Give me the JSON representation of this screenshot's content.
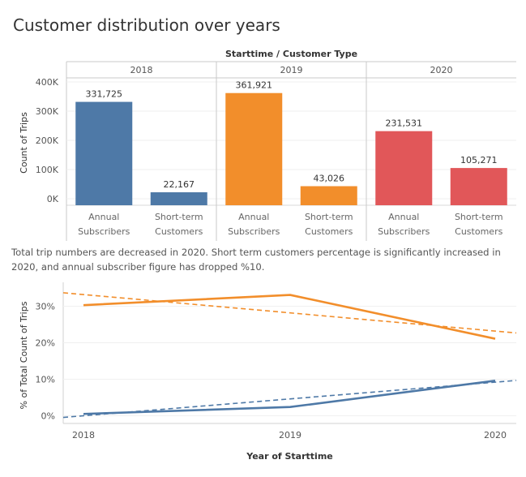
{
  "title": "Customer distribution over years",
  "caption": "Total trip numbers are decreased in 2020. Short term customers percentage is significantly increased in 2020, and annual subscriber figure has dropped %10.",
  "chart_data": [
    {
      "type": "bar",
      "column_header": "Starttime  /  Customer Type",
      "ylabel": "Count of Trips",
      "ylim": [
        0,
        400000
      ],
      "yticks": [
        {
          "value": 0,
          "label": "0K"
        },
        {
          "value": 100000,
          "label": "100K"
        },
        {
          "value": 200000,
          "label": "200K"
        },
        {
          "value": 300000,
          "label": "300K"
        },
        {
          "value": 400000,
          "label": "400K"
        }
      ],
      "groups": [
        "2018",
        "2019",
        "2020"
      ],
      "categories": [
        [
          "Annual",
          "Subscribers"
        ],
        [
          "Short-term",
          "Customers"
        ]
      ],
      "colors": [
        "#4E79A7",
        "#F28E2B",
        "#E15759"
      ],
      "values": [
        [
          331725,
          22167
        ],
        [
          361921,
          43026
        ],
        [
          231531,
          105271
        ]
      ],
      "labels": [
        [
          "331,725",
          "22,167"
        ],
        [
          "361,921",
          "43,026"
        ],
        [
          "231,531",
          "105,271"
        ]
      ]
    },
    {
      "type": "line",
      "xlabel": "Year of Starttime",
      "ylabel": "% of Total Count of Trips",
      "x": [
        "2018",
        "2019",
        "2020"
      ],
      "ylim": [
        0,
        36
      ],
      "yticks": [
        {
          "value": 0,
          "label": "0%"
        },
        {
          "value": 10,
          "label": "10%"
        },
        {
          "value": 20,
          "label": "20%"
        },
        {
          "value": 30,
          "label": "30%"
        }
      ],
      "series": [
        {
          "values": [
            30.3,
            33.1,
            21.1
          ],
          "color": "#F28E2B",
          "trend": [
            33.2,
            28.2,
            23.2
          ]
        },
        {
          "values": [
            0.5,
            2.4,
            9.6
          ],
          "color": "#4E79A7",
          "trend": [
            0.0,
            4.6,
            9.2
          ]
        }
      ]
    }
  ]
}
